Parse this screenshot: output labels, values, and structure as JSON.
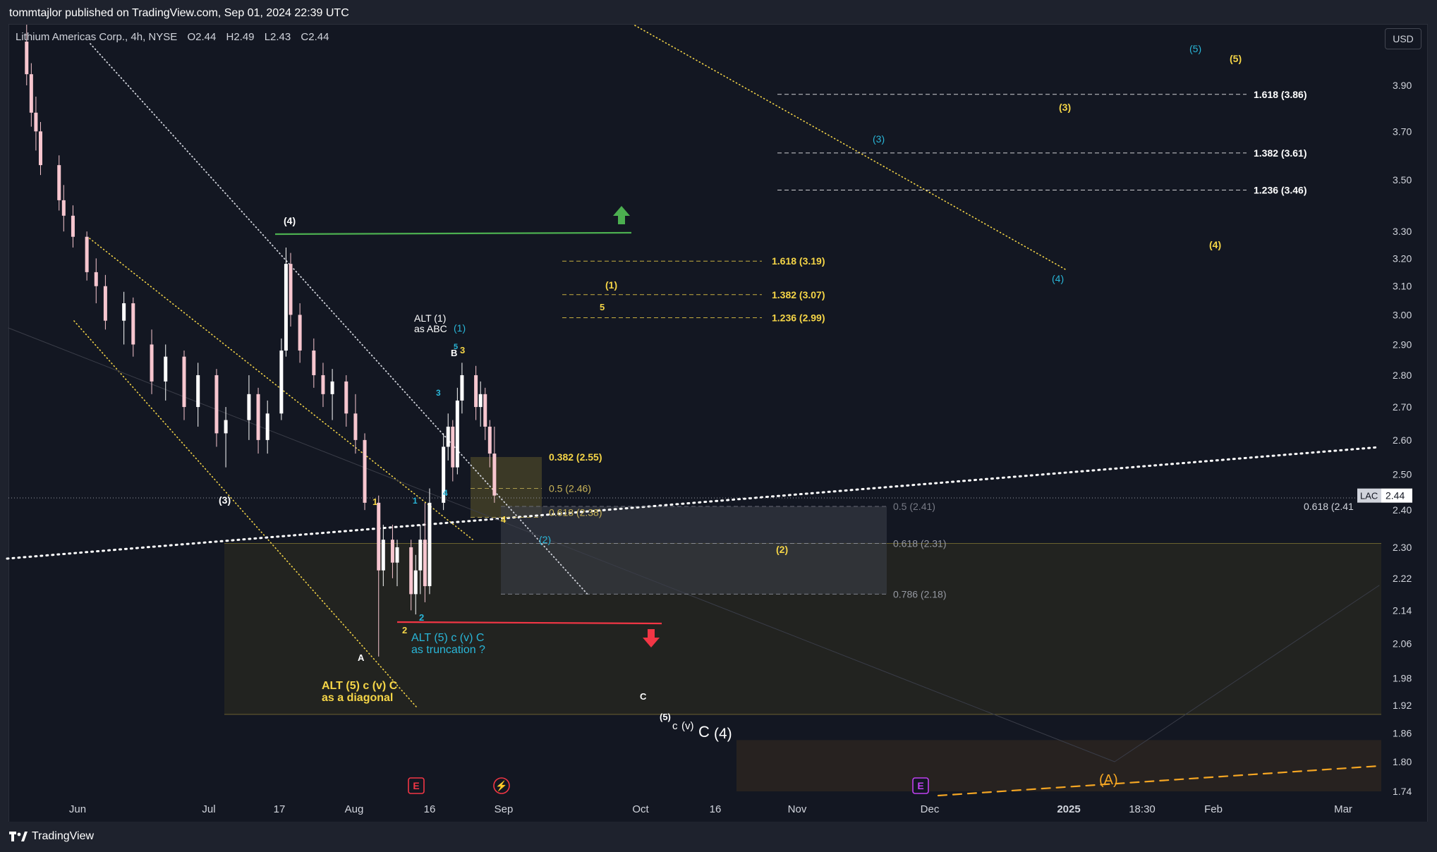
{
  "header": {
    "publisher": "tommtajlor published on TradingView.com, Sep 01, 2024 22:39 UTC"
  },
  "symbol": {
    "name": "Lithium Americas Corp., 4h, NYSE",
    "open": "O2.44",
    "high": "H2.49",
    "low": "L2.43",
    "close": "C2.44"
  },
  "currency_button": "USD",
  "footer": {
    "brand": "TradingView"
  },
  "colors": {
    "background": "#131722",
    "up": "#ffffff",
    "down": "#f7c6cf",
    "yellow": "#f5d547",
    "cyan": "#29b6d8",
    "green": "#4caf50",
    "red": "#f23645",
    "orange": "#f5a623",
    "purple": "#c040f0",
    "grid_text": "#d1d4dc"
  },
  "chart_data": {
    "type": "candlestick",
    "scale": "log",
    "ylim": [
      1.72,
      4.15
    ],
    "y_ticks": [
      "3.90",
      "3.70",
      "3.50",
      "3.30",
      "3.20",
      "3.10",
      "3.00",
      "2.90",
      "2.80",
      "2.70",
      "2.60",
      "2.50",
      "2.40",
      "2.30",
      "2.22",
      "2.14",
      "2.06",
      "1.98",
      "1.92",
      "1.86",
      "1.80",
      "1.74"
    ],
    "x_ticks": [
      "Jun",
      "Jul",
      "17",
      "Aug",
      "16",
      "Sep",
      "Oct",
      "16",
      "Nov",
      "Dec",
      "2025",
      "18:30",
      "Feb",
      "Mar"
    ],
    "last_price": {
      "symbol": "LAC",
      "value": "2.44"
    },
    "fib_levels": [
      {
        "label": "1.618 (3.86)",
        "value": 3.86,
        "color": "#ffffff"
      },
      {
        "label": "1.382 (3.61)",
        "value": 3.61,
        "color": "#ffffff"
      },
      {
        "label": "1.236 (3.46)",
        "value": 3.46,
        "color": "#ffffff"
      },
      {
        "label": "1.618 (3.19)",
        "value": 3.19,
        "color": "#f5d547"
      },
      {
        "label": "1.382 (3.07)",
        "value": 3.07,
        "color": "#f5d547"
      },
      {
        "label": "1.236 (2.99)",
        "value": 2.99,
        "color": "#f5d547"
      },
      {
        "label": "0.382 (2.55)",
        "value": 2.55,
        "color": "#f5d547"
      },
      {
        "label": "0.5 (2.46)",
        "value": 2.46,
        "color": "#c9b458"
      },
      {
        "label": "0.618 (2.38)",
        "value": 2.38,
        "color": "#c9b458"
      },
      {
        "label": "0.5 (2.41)",
        "value": 2.41,
        "color": "#787b86"
      },
      {
        "label": "0.618 (2.31)",
        "value": 2.31,
        "color": "#9598a1"
      },
      {
        "label": "0.786 (2.18)",
        "value": 2.18,
        "color": "#9598a1"
      },
      {
        "label": "0.618 (2.41",
        "value": 2.41,
        "color": "#d1d4dc"
      }
    ],
    "wave_labels": [
      {
        "text": "(4)",
        "color": "#ffffff"
      },
      {
        "text": "(3)",
        "color": "#ffffff"
      },
      {
        "text": "ALT (1)",
        "color": "#ffffff"
      },
      {
        "text": "as ABC",
        "color": "#ffffff"
      },
      {
        "text": "(1)",
        "color": "#29b6d8"
      },
      {
        "text": "5",
        "color": "#29b6d8"
      },
      {
        "text": "B",
        "color": "#ffffff"
      },
      {
        "text": "3",
        "color": "#f5d547"
      },
      {
        "text": "3",
        "color": "#29b6d8"
      },
      {
        "text": "4",
        "color": "#29b6d8"
      },
      {
        "text": "1",
        "color": "#29b6d8"
      },
      {
        "text": "1",
        "color": "#f5d547"
      },
      {
        "text": "4",
        "color": "#f5d547"
      },
      {
        "text": "(2)",
        "color": "#29b6d8"
      },
      {
        "text": "2",
        "color": "#29b6d8"
      },
      {
        "text": "2",
        "color": "#f5d547"
      },
      {
        "text": "A",
        "color": "#ffffff"
      },
      {
        "text": "ALT (5) c (v) C",
        "color": "#29b6d8"
      },
      {
        "text": "as truncation ?",
        "color": "#29b6d8"
      },
      {
        "text": "ALT (5) c (v) C",
        "color": "#f5d547"
      },
      {
        "text": "as a diagonal",
        "color": "#f5d547"
      },
      {
        "text": "C",
        "color": "#ffffff"
      },
      {
        "text": "(5)",
        "color": "#ffffff"
      },
      {
        "text": "c",
        "color": "#ffffff"
      },
      {
        "text": "(v)",
        "color": "#ffffff"
      },
      {
        "text": "C",
        "color": "#ffffff"
      },
      {
        "text": "(4)",
        "color": "#ffffff"
      },
      {
        "text": "(1)",
        "color": "#f5d547"
      },
      {
        "text": "5",
        "color": "#f5d547"
      },
      {
        "text": "(2)",
        "color": "#f5d547"
      },
      {
        "text": "(3)",
        "color": "#29b6d8"
      },
      {
        "text": "(4)",
        "color": "#29b6d8"
      },
      {
        "text": "(5)",
        "color": "#29b6d8"
      },
      {
        "text": "(3)",
        "color": "#f5d547"
      },
      {
        "text": "(4)",
        "color": "#f5d547"
      },
      {
        "text": "(5)",
        "color": "#f5d547"
      },
      {
        "text": "(A)",
        "color": "#f5a623"
      }
    ],
    "event_markers": [
      "E",
      "⚡",
      "E"
    ],
    "candles": [
      {
        "date": "2024-05-21",
        "o": 4.1,
        "h": 4.18,
        "l": 3.9,
        "c": 3.95
      },
      {
        "date": "2024-05-22",
        "o": 3.95,
        "h": 4.0,
        "l": 3.72,
        "c": 3.78
      },
      {
        "date": "2024-05-23",
        "o": 3.78,
        "h": 3.85,
        "l": 3.62,
        "c": 3.7
      },
      {
        "date": "2024-05-24",
        "o": 3.7,
        "h": 3.74,
        "l": 3.52,
        "c": 3.56
      },
      {
        "date": "2024-05-28",
        "o": 3.56,
        "h": 3.6,
        "l": 3.38,
        "c": 3.42
      },
      {
        "date": "2024-05-29",
        "o": 3.42,
        "h": 3.48,
        "l": 3.3,
        "c": 3.36
      },
      {
        "date": "2024-05-31",
        "o": 3.36,
        "h": 3.4,
        "l": 3.24,
        "c": 3.28
      },
      {
        "date": "2024-06-03",
        "o": 3.28,
        "h": 3.3,
        "l": 3.12,
        "c": 3.15
      },
      {
        "date": "2024-06-05",
        "o": 3.15,
        "h": 3.2,
        "l": 3.04,
        "c": 3.1
      },
      {
        "date": "2024-06-07",
        "o": 3.1,
        "h": 3.14,
        "l": 2.95,
        "c": 2.98
      },
      {
        "date": "2024-06-11",
        "o": 2.98,
        "h": 3.08,
        "l": 2.9,
        "c": 3.04
      },
      {
        "date": "2024-06-13",
        "o": 3.04,
        "h": 3.06,
        "l": 2.86,
        "c": 2.9
      },
      {
        "date": "2024-06-17",
        "o": 2.9,
        "h": 2.95,
        "l": 2.74,
        "c": 2.78
      },
      {
        "date": "2024-06-20",
        "o": 2.78,
        "h": 2.9,
        "l": 2.72,
        "c": 2.86
      },
      {
        "date": "2024-06-24",
        "o": 2.86,
        "h": 2.88,
        "l": 2.66,
        "c": 2.7
      },
      {
        "date": "2024-06-27",
        "o": 2.7,
        "h": 2.84,
        "l": 2.64,
        "c": 2.8
      },
      {
        "date": "2024-07-01",
        "o": 2.8,
        "h": 2.82,
        "l": 2.58,
        "c": 2.62
      },
      {
        "date": "2024-07-03",
        "o": 2.62,
        "h": 2.7,
        "l": 2.52,
        "c": 2.66
      },
      {
        "date": "2024-07-08",
        "o": 2.66,
        "h": 2.8,
        "l": 2.6,
        "c": 2.74
      },
      {
        "date": "2024-07-10",
        "o": 2.74,
        "h": 2.76,
        "l": 2.56,
        "c": 2.6
      },
      {
        "date": "2024-07-12",
        "o": 2.6,
        "h": 2.72,
        "l": 2.56,
        "c": 2.68
      },
      {
        "date": "2024-07-15",
        "o": 2.68,
        "h": 2.92,
        "l": 2.66,
        "c": 2.88
      },
      {
        "date": "2024-07-16",
        "o": 2.88,
        "h": 3.24,
        "l": 2.86,
        "c": 3.18
      },
      {
        "date": "2024-07-17",
        "o": 3.18,
        "h": 3.22,
        "l": 2.96,
        "c": 3.0
      },
      {
        "date": "2024-07-19",
        "o": 3.0,
        "h": 3.04,
        "l": 2.84,
        "c": 2.88
      },
      {
        "date": "2024-07-22",
        "o": 2.88,
        "h": 2.92,
        "l": 2.76,
        "c": 2.8
      },
      {
        "date": "2024-07-24",
        "o": 2.8,
        "h": 2.84,
        "l": 2.7,
        "c": 2.74
      },
      {
        "date": "2024-07-26",
        "o": 2.74,
        "h": 2.82,
        "l": 2.66,
        "c": 2.78
      },
      {
        "date": "2024-07-29",
        "o": 2.78,
        "h": 2.8,
        "l": 2.64,
        "c": 2.68
      },
      {
        "date": "2024-07-31",
        "o": 2.68,
        "h": 2.74,
        "l": 2.56,
        "c": 2.6
      },
      {
        "date": "2024-08-02",
        "o": 2.6,
        "h": 2.62,
        "l": 2.4,
        "c": 2.42
      },
      {
        "date": "2024-08-05",
        "o": 2.42,
        "h": 2.44,
        "l": 2.03,
        "c": 2.24
      },
      {
        "date": "2024-08-06",
        "o": 2.24,
        "h": 2.36,
        "l": 2.2,
        "c": 2.32
      },
      {
        "date": "2024-08-08",
        "o": 2.32,
        "h": 2.36,
        "l": 2.22,
        "c": 2.26
      },
      {
        "date": "2024-08-09",
        "o": 2.26,
        "h": 2.32,
        "l": 2.2,
        "c": 2.3
      },
      {
        "date": "2024-08-12",
        "o": 2.3,
        "h": 2.32,
        "l": 2.14,
        "c": 2.18
      },
      {
        "date": "2024-08-13",
        "o": 2.18,
        "h": 2.28,
        "l": 2.13,
        "c": 2.24
      },
      {
        "date": "2024-08-14",
        "o": 2.24,
        "h": 2.36,
        "l": 2.18,
        "c": 2.32
      },
      {
        "date": "2024-08-15",
        "o": 2.32,
        "h": 2.42,
        "l": 2.16,
        "c": 2.2
      },
      {
        "date": "2024-08-16",
        "o": 2.2,
        "h": 2.46,
        "l": 2.18,
        "c": 2.42
      },
      {
        "date": "2024-08-19",
        "o": 2.42,
        "h": 2.62,
        "l": 2.4,
        "c": 2.58
      },
      {
        "date": "2024-08-20",
        "o": 2.58,
        "h": 2.68,
        "l": 2.54,
        "c": 2.64
      },
      {
        "date": "2024-08-21",
        "o": 2.64,
        "h": 2.66,
        "l": 2.48,
        "c": 2.52
      },
      {
        "date": "2024-08-22",
        "o": 2.52,
        "h": 2.76,
        "l": 2.5,
        "c": 2.72
      },
      {
        "date": "2024-08-23",
        "o": 2.72,
        "h": 2.84,
        "l": 2.68,
        "c": 2.8
      },
      {
        "date": "2024-08-26",
        "o": 2.8,
        "h": 2.83,
        "l": 2.66,
        "c": 2.7
      },
      {
        "date": "2024-08-27",
        "o": 2.7,
        "h": 2.78,
        "l": 2.64,
        "c": 2.74
      },
      {
        "date": "2024-08-28",
        "o": 2.74,
        "h": 2.76,
        "l": 2.6,
        "c": 2.64
      },
      {
        "date": "2024-08-29",
        "o": 2.64,
        "h": 2.66,
        "l": 2.52,
        "c": 2.56
      },
      {
        "date": "2024-08-30",
        "o": 2.56,
        "h": 2.64,
        "l": 2.42,
        "c": 2.44
      }
    ]
  }
}
